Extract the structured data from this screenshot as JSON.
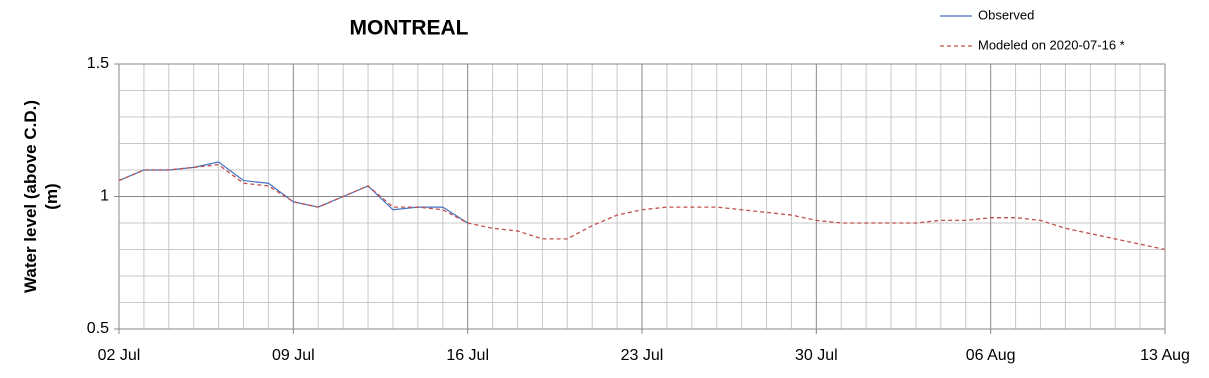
{
  "chart_data": {
    "type": "line",
    "title": "MONTREAL",
    "ylabel": [
      "Water level (above C.D.)",
      "(m)"
    ],
    "x": [
      "02 Jul",
      "03 Jul",
      "04 Jul",
      "05 Jul",
      "06 Jul",
      "07 Jul",
      "08 Jul",
      "09 Jul",
      "10 Jul",
      "11 Jul",
      "12 Jul",
      "13 Jul",
      "14 Jul",
      "15 Jul",
      "16 Jul",
      "17 Jul",
      "18 Jul",
      "19 Jul",
      "20 Jul",
      "21 Jul",
      "22 Jul",
      "23 Jul",
      "24 Jul",
      "25 Jul",
      "26 Jul",
      "27 Jul",
      "28 Jul",
      "29 Jul",
      "30 Jul",
      "31 Jul",
      "01 Aug",
      "02 Aug",
      "03 Aug",
      "04 Aug",
      "05 Aug",
      "06 Aug",
      "07 Aug",
      "08 Aug",
      "09 Aug",
      "10 Aug",
      "11 Aug",
      "12 Aug",
      "13 Aug"
    ],
    "xticks": [
      "02 Jul",
      "09 Jul",
      "16 Jul",
      "23 Jul",
      "30 Jul",
      "06 Aug",
      "13 Aug"
    ],
    "ylim": [
      0.5,
      1.5
    ],
    "yticks": [
      0.5,
      1,
      1.5
    ],
    "y_minor_ticks": [
      0.6,
      0.7,
      0.8,
      0.9,
      1.1,
      1.2,
      1.3,
      1.4
    ],
    "grid": true,
    "series": [
      {
        "name": "Observed",
        "color": "#4472c4",
        "dash": false,
        "values": [
          1.06,
          1.1,
          1.1,
          1.11,
          1.13,
          1.06,
          1.05,
          0.98,
          0.96,
          1.0,
          1.04,
          0.95,
          0.96,
          0.96,
          0.9,
          null,
          null,
          null,
          null,
          null,
          null,
          null,
          null,
          null,
          null,
          null,
          null,
          null,
          null,
          null,
          null,
          null,
          null,
          null,
          null,
          null,
          null,
          null,
          null,
          null,
          null,
          null,
          null
        ]
      },
      {
        "name": "Modeled on 2020-07-16 *",
        "color": "#c0504d",
        "dash": true,
        "values": [
          1.06,
          1.1,
          1.1,
          1.11,
          1.12,
          1.05,
          1.04,
          0.98,
          0.96,
          1.0,
          1.04,
          0.96,
          0.96,
          0.95,
          0.9,
          0.88,
          0.87,
          0.84,
          0.84,
          0.89,
          0.93,
          0.95,
          0.96,
          0.96,
          0.96,
          0.95,
          0.94,
          0.93,
          0.91,
          0.9,
          0.9,
          0.9,
          0.9,
          0.91,
          0.91,
          0.92,
          0.92,
          0.91,
          0.88,
          0.86,
          0.84,
          0.82,
          0.8
        ]
      }
    ]
  }
}
